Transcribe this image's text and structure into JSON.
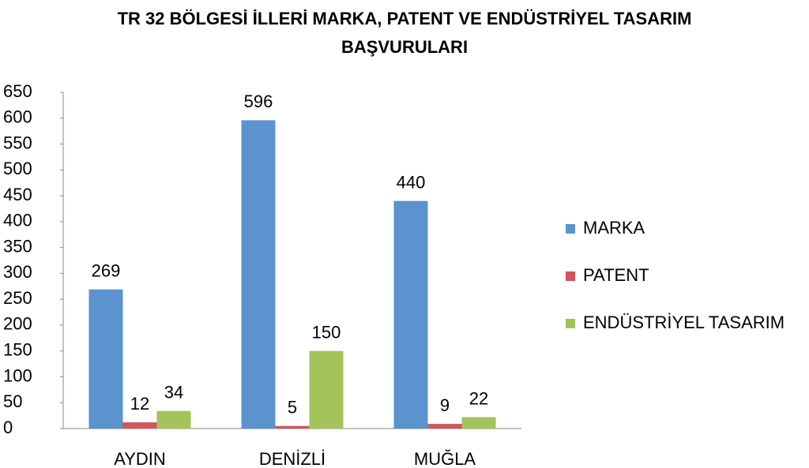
{
  "chart_data": {
    "type": "bar",
    "title": "TR 32 BÖLGESİ İLLERİ MARKA, PATENT VE ENDÜSTRİYEL TASARIM BAŞVURULARI",
    "categories": [
      "AYDIN",
      "DENİZLİ",
      "MUĞLA"
    ],
    "series": [
      {
        "name": "MARKA",
        "color": "#5b93cf",
        "values": [
          269,
          596,
          440
        ]
      },
      {
        "name": "PATENT",
        "color": "#d0575a",
        "values": [
          12,
          5,
          9
        ]
      },
      {
        "name": "ENDÜSTRİYEL TASARIM",
        "color": "#a3c35b",
        "values": [
          34,
          150,
          22
        ]
      }
    ],
    "ylim": [
      0,
      650
    ],
    "yticks": [
      0,
      50,
      100,
      150,
      200,
      250,
      300,
      350,
      400,
      450,
      500,
      550,
      600,
      650
    ],
    "grid": false,
    "legend": "right"
  }
}
